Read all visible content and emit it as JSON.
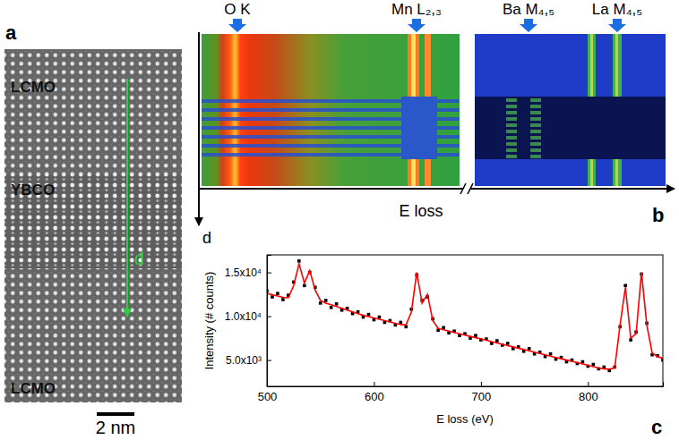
{
  "panels": {
    "a": {
      "letter": "a",
      "layers": [
        "LCMO",
        "YBCO",
        "LCMO"
      ],
      "profile_label": "d",
      "scale_bar": "2 nm"
    },
    "b": {
      "letter": "b",
      "edges": [
        "O K",
        "Mn L₂,₃",
        "Ba M₄,₅",
        "La M₄,₅"
      ],
      "x_label": "E loss",
      "y_label": "d"
    },
    "c": {
      "letter": "c"
    }
  },
  "chart_data": {
    "type": "scatter",
    "x_label": "E loss (eV)",
    "y_label": "Intensity (# counts)",
    "x": [
      500,
      505,
      510,
      515,
      520,
      525,
      530,
      535,
      540,
      545,
      550,
      555,
      560,
      565,
      570,
      575,
      580,
      585,
      590,
      595,
      600,
      605,
      610,
      615,
      620,
      625,
      630,
      635,
      640,
      645,
      650,
      655,
      660,
      665,
      670,
      675,
      680,
      685,
      690,
      695,
      700,
      705,
      710,
      715,
      720,
      725,
      730,
      735,
      740,
      745,
      750,
      755,
      760,
      765,
      770,
      775,
      780,
      785,
      790,
      795,
      800,
      805,
      810,
      815,
      820,
      825,
      830,
      835,
      840,
      845,
      850,
      855,
      860,
      865,
      870
    ],
    "series": [
      {
        "type": "scatter",
        "color": "#000000",
        "marker": "square",
        "values": [
          12900,
          12200,
          12600,
          11900,
          12400,
          13900,
          16300,
          13500,
          15000,
          13300,
          11500,
          11800,
          11000,
          11400,
          10700,
          10900,
          10300,
          10500,
          9900,
          10200,
          9600,
          9900,
          9300,
          9500,
          9000,
          9300,
          8800,
          10800,
          14700,
          11800,
          12200,
          9700,
          8400,
          8700,
          8100,
          8300,
          7800,
          8000,
          7500,
          7800,
          7300,
          7400,
          6900,
          7200,
          6700,
          6900,
          6300,
          6500,
          6000,
          6300,
          5700,
          5900,
          5400,
          5700,
          5100,
          5300,
          4800,
          5000,
          4600,
          4800,
          4300,
          4500,
          4000,
          4200,
          3800,
          4200,
          8800,
          13500,
          7300,
          8200,
          14800,
          9200,
          5600,
          5500,
          5000
        ]
      },
      {
        "type": "line",
        "color": "#ff0000",
        "line_style": "solid",
        "values": [
          12600,
          12450,
          12300,
          12150,
          12100,
          13500,
          16000,
          13800,
          15200,
          13000,
          11800,
          11500,
          11300,
          11100,
          10900,
          10700,
          10500,
          10300,
          10100,
          9950,
          9800,
          9650,
          9500,
          9350,
          9200,
          9050,
          9000,
          10500,
          15000,
          11500,
          12500,
          9500,
          8600,
          8450,
          8300,
          8150,
          8000,
          7850,
          7700,
          7550,
          7400,
          7250,
          7100,
          6950,
          6800,
          6650,
          6500,
          6350,
          6200,
          6050,
          5900,
          5750,
          5600,
          5450,
          5300,
          5150,
          5000,
          4850,
          4700,
          4550,
          4400,
          4250,
          4100,
          4000,
          3950,
          4100,
          9000,
          13300,
          7500,
          8000,
          15000,
          9000,
          5800,
          5400,
          5200
        ]
      }
    ],
    "xlim": [
      500,
      870
    ],
    "xticks": [
      500,
      600,
      700,
      800
    ],
    "ylim": [
      2000,
      17000
    ],
    "yticks": [
      {
        "value": 5000,
        "label": "5.0x10³"
      },
      {
        "value": 10000,
        "label": "1.0x10⁴"
      },
      {
        "value": 15000,
        "label": "1.5x10⁴"
      }
    ]
  }
}
